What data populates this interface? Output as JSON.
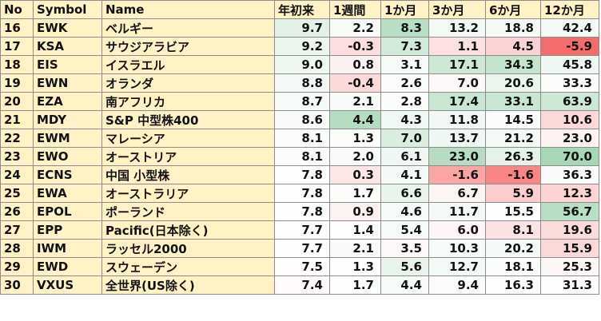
{
  "columns": [
    "No",
    "Symbol",
    "Name",
    "年初来",
    "1週間",
    "1か月",
    "3か月",
    "6か月",
    "12か月"
  ],
  "rows": [
    {
      "no": "16",
      "symbol": "EWK",
      "name": "ベルギー",
      "values": [
        "9.7",
        "2.2",
        "8.3",
        "13.2",
        "18.8",
        "42.4"
      ]
    },
    {
      "no": "17",
      "symbol": "KSA",
      "name": "サウジアラビア",
      "values": [
        "9.2",
        "-0.3",
        "7.3",
        "1.1",
        "4.5",
        "-5.9"
      ]
    },
    {
      "no": "18",
      "symbol": "EIS",
      "name": "イスラエル",
      "values": [
        "9.0",
        "0.8",
        "3.1",
        "17.1",
        "34.3",
        "45.8"
      ]
    },
    {
      "no": "19",
      "symbol": "EWN",
      "name": "オランダ",
      "values": [
        "8.8",
        "-0.4",
        "2.6",
        "7.0",
        "20.6",
        "33.3"
      ]
    },
    {
      "no": "20",
      "symbol": "EZA",
      "name": "南アフリカ",
      "values": [
        "8.7",
        "2.1",
        "2.8",
        "17.4",
        "33.1",
        "63.9"
      ]
    },
    {
      "no": "21",
      "symbol": "MDY",
      "name": "S&P 中型株400",
      "values": [
        "8.6",
        "4.4",
        "4.3",
        "11.8",
        "14.5",
        "10.6"
      ]
    },
    {
      "no": "22",
      "symbol": "EWM",
      "name": "マレーシア",
      "values": [
        "8.1",
        "1.3",
        "7.0",
        "13.7",
        "21.2",
        "23.0"
      ]
    },
    {
      "no": "23",
      "symbol": "EWO",
      "name": "オーストリア",
      "values": [
        "8.1",
        "2.0",
        "6.1",
        "23.0",
        "26.3",
        "70.0"
      ]
    },
    {
      "no": "24",
      "symbol": "ECNS",
      "name": "中国 小型株",
      "values": [
        "7.8",
        "0.3",
        "4.1",
        "-1.6",
        "-1.6",
        "36.3"
      ]
    },
    {
      "no": "25",
      "symbol": "EWA",
      "name": "オーストラリア",
      "values": [
        "7.8",
        "1.7",
        "6.6",
        "6.7",
        "5.9",
        "12.3"
      ]
    },
    {
      "no": "26",
      "symbol": "EPOL",
      "name": "ポーランド",
      "values": [
        "7.8",
        "0.9",
        "4.6",
        "11.7",
        "15.5",
        "56.7"
      ]
    },
    {
      "no": "27",
      "symbol": "EPP",
      "name": "Pacific(日本除く)",
      "values": [
        "7.7",
        "1.4",
        "5.4",
        "6.0",
        "8.1",
        "19.6"
      ]
    },
    {
      "no": "28",
      "symbol": "IWM",
      "name": "ラッセル2000",
      "values": [
        "7.7",
        "2.1",
        "3.5",
        "10.3",
        "20.2",
        "15.9"
      ]
    },
    {
      "no": "29",
      "symbol": "EWD",
      "name": "スウェーデン",
      "values": [
        "7.5",
        "1.3",
        "5.6",
        "12.7",
        "18.1",
        "25.3"
      ]
    },
    {
      "no": "30",
      "symbol": "VXUS",
      "name": "全世界(US除く)",
      "values": [
        "7.4",
        "1.7",
        "4.4",
        "9.4",
        "16.3",
        "31.3"
      ]
    }
  ],
  "cell_colors": [
    [
      "#e3f1e7",
      "#f7fbf8",
      "#b8dec4",
      "#f3f9f5",
      "#f6faf7",
      "#f4f9f6"
    ],
    [
      "#ecf6ef",
      "#fcdede",
      "#d2ead9",
      "#fde0e0",
      "#fcd3d3",
      "#f56c6c"
    ],
    [
      "#eff7f1",
      "#fcf1f1",
      "#f7fbf8",
      "#cde8d5",
      "#c4e4cd",
      "#eef7f1"
    ],
    [
      "#f4f9f6",
      "#fcdada",
      "#fbfdfb",
      "#fdf8f8",
      "#eaf5ed",
      "#fbfdfb"
    ],
    [
      "#f7fbf8",
      "#f8fbf9",
      "#fbfdfb",
      "#c9e6d2",
      "#c9e6d2",
      "#cde8d5"
    ],
    [
      "#f8fbf9",
      "#b4dcc0",
      "#f0f8f3",
      "#f2f9f4",
      "#f9fcfa",
      "#fcd9d9"
    ],
    [
      "#fafcfb",
      "#fbfdfb",
      "#daeee0",
      "#eef7f1",
      "#f4f9f6",
      "#fdf3f3"
    ],
    [
      "#fafcfb",
      "#f8fbf9",
      "#eef7f1",
      "#b6ddc2",
      "#e4f2e8",
      "#a8d7b6"
    ],
    [
      "#fdfefd",
      "#fde6e6",
      "#f5faf7",
      "#fca5a5",
      "#f98686",
      "#f8fbf9"
    ],
    [
      "#fdfefd",
      "#fbfdfb",
      "#e9f5ec",
      "#fdf4f4",
      "#fccece",
      "#fcd4d4"
    ],
    [
      "#fdfefd",
      "#fcf2f2",
      "#f6fbf8",
      "#f4f9f6",
      "#fefefe",
      "#b8dec4"
    ],
    [
      "#fefefe",
      "#fcfdfc",
      "#f7fbf8",
      "#fdf6f6",
      "#fce3e3",
      "#fcdbdb"
    ],
    [
      "#fefefe",
      "#f8fbf9",
      "#fdf7f7",
      "#f7fbf8",
      "#f5faf7",
      "#fcd9d9"
    ],
    [
      "#fffcfc",
      "#fdfefd",
      "#e8f4eb",
      "#f3f9f5",
      "#fbfdfb",
      "#fdf6f6"
    ],
    [
      "#fefafa",
      "#fcfefd",
      "#f6fbf8",
      "#fcfcfc",
      "#fdfdfd",
      "#fdfdfd"
    ]
  ]
}
